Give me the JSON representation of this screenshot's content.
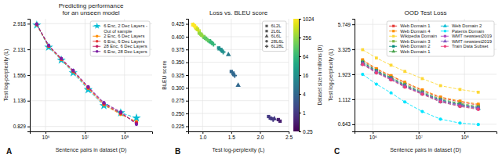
{
  "chart_data": [
    {
      "type": "line",
      "title": "Predicting performance\nfor an unseen model",
      "xlabel": "Sentence pairs in dataset (D)",
      "ylabel": "Test log-perplexity (L)",
      "log": true,
      "grid": true,
      "legend": "upper right",
      "xlim": [
        400000,
        500000000
      ],
      "ylim": [
        0.78,
        3.1
      ],
      "xticks": [
        {
          "value": 1000000,
          "label": "10⁶"
        },
        {
          "value": 10000000,
          "label": "10⁷"
        },
        {
          "value": 100000000,
          "label": "10⁸"
        }
      ],
      "yticks": [
        0.829,
        1.136,
        1.556,
        2.131,
        2.918
      ],
      "x": [
        600000,
        1200000,
        2500000,
        5000000,
        12000000,
        30000000,
        80000000,
        200000000
      ],
      "series": [
        {
          "name": "6 Enc, 2 Dec Layers -\nOut of sample",
          "color": "#00bcd4",
          "marker": "star",
          "line_style": "dashed",
          "values": [
            2.87,
            2.19,
            1.87,
            1.6,
            1.3,
            1.07,
            0.98,
            0.92
          ]
        },
        {
          "name": "2 Enc, 6 Dec Layers",
          "color": "#ff8c00",
          "marker": "circle",
          "line_style": "dashed",
          "values": [
            2.88,
            2.21,
            1.88,
            1.62,
            1.32,
            1.08,
            0.96,
            0.88
          ]
        },
        {
          "name": "6 Enc, 6 Dec Layers",
          "color": "#e53935",
          "marker": "circle",
          "line_style": "dashed",
          "values": [
            2.89,
            2.22,
            1.89,
            1.63,
            1.33,
            1.09,
            0.97,
            0.87
          ]
        },
        {
          "name": "28 Enc, 6 Dec Layers",
          "color": "#c2185b",
          "marker": "circle",
          "line_style": "dashed",
          "values": [
            2.9,
            2.23,
            1.9,
            1.64,
            1.34,
            1.1,
            0.98,
            0.86
          ]
        },
        {
          "name": "6 Enc, 28 Dec Layers",
          "color": "#7b1fa2",
          "marker": "circle",
          "line_style": "dashed",
          "values": [
            2.91,
            2.24,
            1.91,
            1.65,
            1.35,
            1.11,
            0.99,
            0.85
          ]
        }
      ],
      "annotations": [
        "A"
      ]
    },
    {
      "type": "scatter",
      "title": "Loss vs. BLEU score",
      "xlabel": "Test log-perplexity (L)",
      "ylabel": "BLEU score",
      "grid": true,
      "legend": "upper right",
      "xlim": [
        0.75,
        2.5
      ],
      "ylim": [
        0.215,
        0.435
      ],
      "xticks": [
        {
          "value": 1,
          "label": "1.0"
        },
        1.5,
        {
          "value": 2,
          "label": "2.0"
        },
        2.5
      ],
      "yticks": [
        0.225,
        {
          "value": 0.25,
          "label": "0.250"
        },
        0.275,
        {
          "value": 0.3,
          "label": "0.300"
        },
        0.325,
        {
          "value": 0.35,
          "label": "0.350"
        },
        0.375,
        {
          "value": 0.4,
          "label": "0.400"
        },
        0.425
      ],
      "colorbar_label": "Dataset size in millions (D)",
      "colorbar_lim": [
        0.25,
        1024
      ],
      "colorbar_ticks": [
        0.25,
        1,
        4,
        16,
        64,
        256,
        1024
      ],
      "series": [
        {
          "name": "6L2L",
          "marker": "square",
          "x": [
            0.83,
            0.88,
            0.94,
            1.02,
            1.12,
            1.28,
            1.5,
            2.15,
            2.32
          ],
          "values": [
            0.424,
            0.418,
            0.408,
            0.4,
            0.392,
            0.378,
            0.332,
            0.244,
            0.238
          ],
          "sizes": [
            1024,
            512,
            256,
            128,
            64,
            16,
            4,
            1,
            0.5
          ]
        },
        {
          "name": "2L6L",
          "marker": "square",
          "x": [
            0.86,
            0.91,
            0.97,
            1.05,
            1.15,
            1.32,
            1.53,
            2.18,
            2.35
          ],
          "values": [
            0.421,
            0.415,
            0.405,
            0.397,
            0.389,
            0.375,
            0.329,
            0.241,
            0.235
          ],
          "sizes": [
            1024,
            512,
            256,
            128,
            64,
            16,
            4,
            1,
            0.5
          ]
        },
        {
          "name": "6L6L",
          "marker": "triangle",
          "x": [
            0.84,
            0.9,
            0.96,
            1.04,
            1.14,
            1.3,
            1.45,
            1.62,
            2.25
          ],
          "values": [
            0.423,
            0.416,
            0.406,
            0.398,
            0.39,
            0.376,
            0.365,
            0.305,
            0.24
          ],
          "sizes": [
            1024,
            512,
            256,
            128,
            64,
            16,
            8,
            4,
            1
          ]
        },
        {
          "name": "28L6L",
          "marker": "circle",
          "x": [
            0.85,
            0.91,
            0.98,
            1.07,
            1.17,
            1.34,
            1.54,
            2.2
          ],
          "values": [
            0.422,
            0.414,
            0.403,
            0.395,
            0.387,
            0.372,
            0.326,
            0.24
          ],
          "sizes": [
            1024,
            512,
            256,
            128,
            64,
            16,
            4,
            1
          ]
        },
        {
          "name": "6L28L",
          "marker": "plus",
          "x": [
            0.87,
            0.93,
            1.0,
            1.09,
            1.19,
            1.36,
            1.56,
            2.23
          ],
          "values": [
            0.42,
            0.413,
            0.402,
            0.393,
            0.385,
            0.37,
            0.324,
            0.238
          ],
          "sizes": [
            1024,
            512,
            256,
            128,
            64,
            16,
            4,
            1
          ]
        }
      ],
      "annotations": [
        "B"
      ]
    },
    {
      "type": "line",
      "title": "OOD Test Loss",
      "xlabel": "Sentence pairs in dataset (D)",
      "ylabel": "Test log-perplexity (L)",
      "log": true,
      "grid": true,
      "legend": "upper right",
      "xlim": [
        400000,
        500000000
      ],
      "ylim": [
        0.55,
        6.5
      ],
      "xticks": [
        {
          "value": 1000000,
          "label": "10⁶"
        },
        {
          "value": 10000000,
          "label": "10⁷"
        },
        {
          "value": 100000000,
          "label": "10⁸"
        }
      ],
      "yticks": [
        0.643,
        1.112,
        1.923,
        3.325,
        5.749
      ],
      "x": [
        600000,
        1200000,
        2500000,
        5000000,
        12000000,
        30000000,
        80000000,
        200000000
      ],
      "series": [
        {
          "name": "Web Domain 1",
          "color": "#e53935",
          "marker": "square",
          "line_style": "dashed",
          "values": [
            2.6,
            2.15,
            1.85,
            1.6,
            1.35,
            1.15,
            1.05,
            0.98
          ]
        },
        {
          "name": "Web Domain 4",
          "color": "#ff8c00",
          "marker": "square",
          "line_style": "dashed",
          "values": [
            2.65,
            2.18,
            1.87,
            1.62,
            1.37,
            1.17,
            1.07,
            1.0
          ]
        },
        {
          "name": "Wikipedia Domain",
          "color": "#fdd835",
          "marker": "square",
          "line_style": "dashed",
          "values": [
            3.3,
            2.75,
            2.35,
            2.05,
            1.75,
            1.5,
            1.38,
            1.3
          ]
        },
        {
          "name": "Web Domain 3",
          "color": "#7cb342",
          "marker": "square",
          "line_style": "dashed",
          "values": [
            2.55,
            2.1,
            1.8,
            1.55,
            1.32,
            1.12,
            1.02,
            0.95
          ]
        },
        {
          "name": "Web Domain 2",
          "color": "#00897b",
          "marker": "square",
          "line_style": "dashed",
          "values": [
            2.5,
            2.08,
            1.78,
            1.52,
            1.29,
            1.1,
            1.0,
            0.93
          ]
        },
        {
          "name": "Web Domain 1",
          "color": "#43a047",
          "marker": "triangle",
          "line_style": "dashed",
          "values": [
            2.45,
            2.05,
            1.75,
            1.5,
            1.28,
            1.08,
            0.99,
            0.92
          ]
        },
        {
          "name": "Web Domain 2",
          "color": "#00bcd4",
          "marker": "triangle",
          "line_style": "dashed",
          "values": [
            2.4,
            2.0,
            1.72,
            1.47,
            1.25,
            1.05,
            0.96,
            0.9
          ]
        },
        {
          "name": "Patents Domain",
          "color": "#00e5ff",
          "marker": "circle",
          "line_style": "dashed",
          "values": [
            1.92,
            1.55,
            1.28,
            1.05,
            0.85,
            0.72,
            0.66,
            0.64
          ]
        },
        {
          "name": "WMT newstest2019",
          "color": "#ab47bc",
          "marker": "square",
          "line_style": "dashed",
          "values": [
            2.42,
            2.02,
            1.73,
            1.48,
            1.26,
            1.07,
            0.97,
            0.91
          ]
        },
        {
          "name": "WMT newstest2019",
          "color": "#7e57c2",
          "marker": "triangle",
          "line_style": "dashed",
          "values": [
            2.44,
            2.03,
            1.74,
            1.49,
            1.27,
            1.08,
            0.98,
            0.92
          ]
        },
        {
          "name": "Train Data Subset",
          "color": "#ec407a",
          "marker": "circle",
          "line_style": "dashed",
          "values": [
            2.38,
            1.98,
            1.7,
            1.45,
            1.24,
            1.05,
            0.95,
            0.89
          ]
        }
      ],
      "annotations": [
        "C"
      ]
    }
  ]
}
